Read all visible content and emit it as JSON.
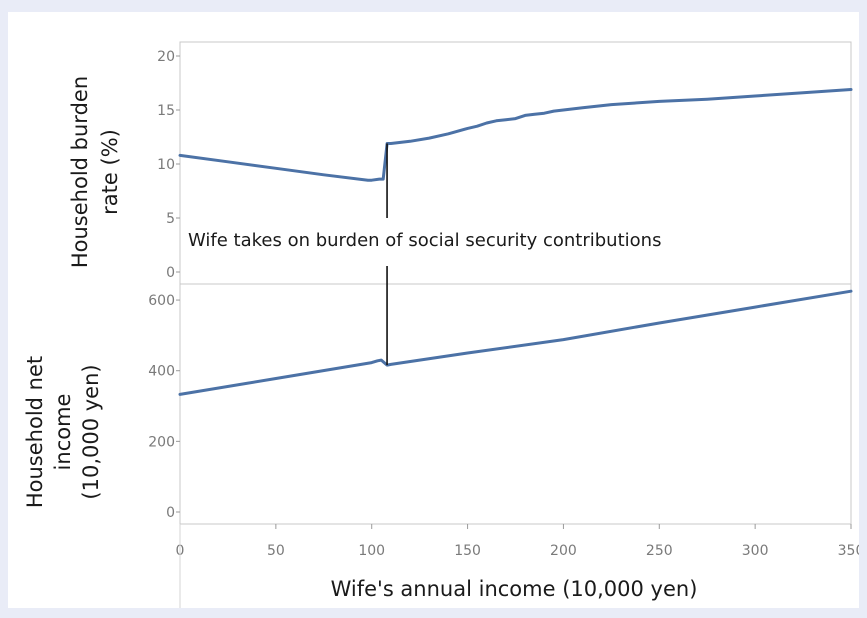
{
  "chart_data": [
    {
      "type": "line",
      "panel": "top",
      "ylabel_lines": [
        "Household burden",
        "rate (%)"
      ],
      "ylim": [
        0,
        20
      ],
      "yticks": [
        "0",
        "5",
        "10",
        "15",
        "20"
      ],
      "xlim": [
        0,
        350
      ],
      "series": [
        {
          "x": [
            0,
            25,
            50,
            75,
            98,
            100,
            104,
            106,
            108,
            110,
            120,
            130,
            140,
            150,
            155,
            160,
            165,
            170,
            175,
            180,
            185,
            190,
            195,
            200,
            210,
            225,
            250,
            275,
            300,
            325,
            350
          ],
          "values": [
            10.8,
            10.2,
            9.6,
            9.0,
            8.5,
            8.5,
            8.6,
            8.6,
            11.9,
            11.9,
            12.1,
            12.4,
            12.8,
            13.3,
            13.5,
            13.8,
            14.0,
            14.1,
            14.2,
            14.5,
            14.6,
            14.7,
            14.9,
            15.0,
            15.2,
            15.5,
            15.8,
            16.0,
            16.3,
            16.6,
            16.9
          ]
        }
      ],
      "annotation": "Wife takes on burden of social security contributions"
    },
    {
      "type": "line",
      "panel": "bottom",
      "ylabel_lines": [
        "Household net",
        "income",
        "(10,000 yen)"
      ],
      "ylim": [
        0,
        620
      ],
      "yticks": [
        "0",
        "200",
        "400",
        "600"
      ],
      "xlim": [
        0,
        350
      ],
      "xticks": [
        "0",
        "50",
        "100",
        "150",
        "200",
        "250",
        "300",
        "350"
      ],
      "xlabel": "Wife's annual income (10,000 yen)",
      "series": [
        {
          "x": [
            0,
            50,
            100,
            103,
            105,
            108,
            110,
            150,
            200,
            250,
            300,
            350
          ],
          "values": [
            333,
            378,
            423,
            428,
            430,
            416,
            418,
            450,
            488,
            535,
            580,
            625
          ]
        }
      ]
    }
  ],
  "colors": {
    "series": "#4c72a6",
    "background": "#e9ecf7",
    "card": "#ffffff"
  }
}
